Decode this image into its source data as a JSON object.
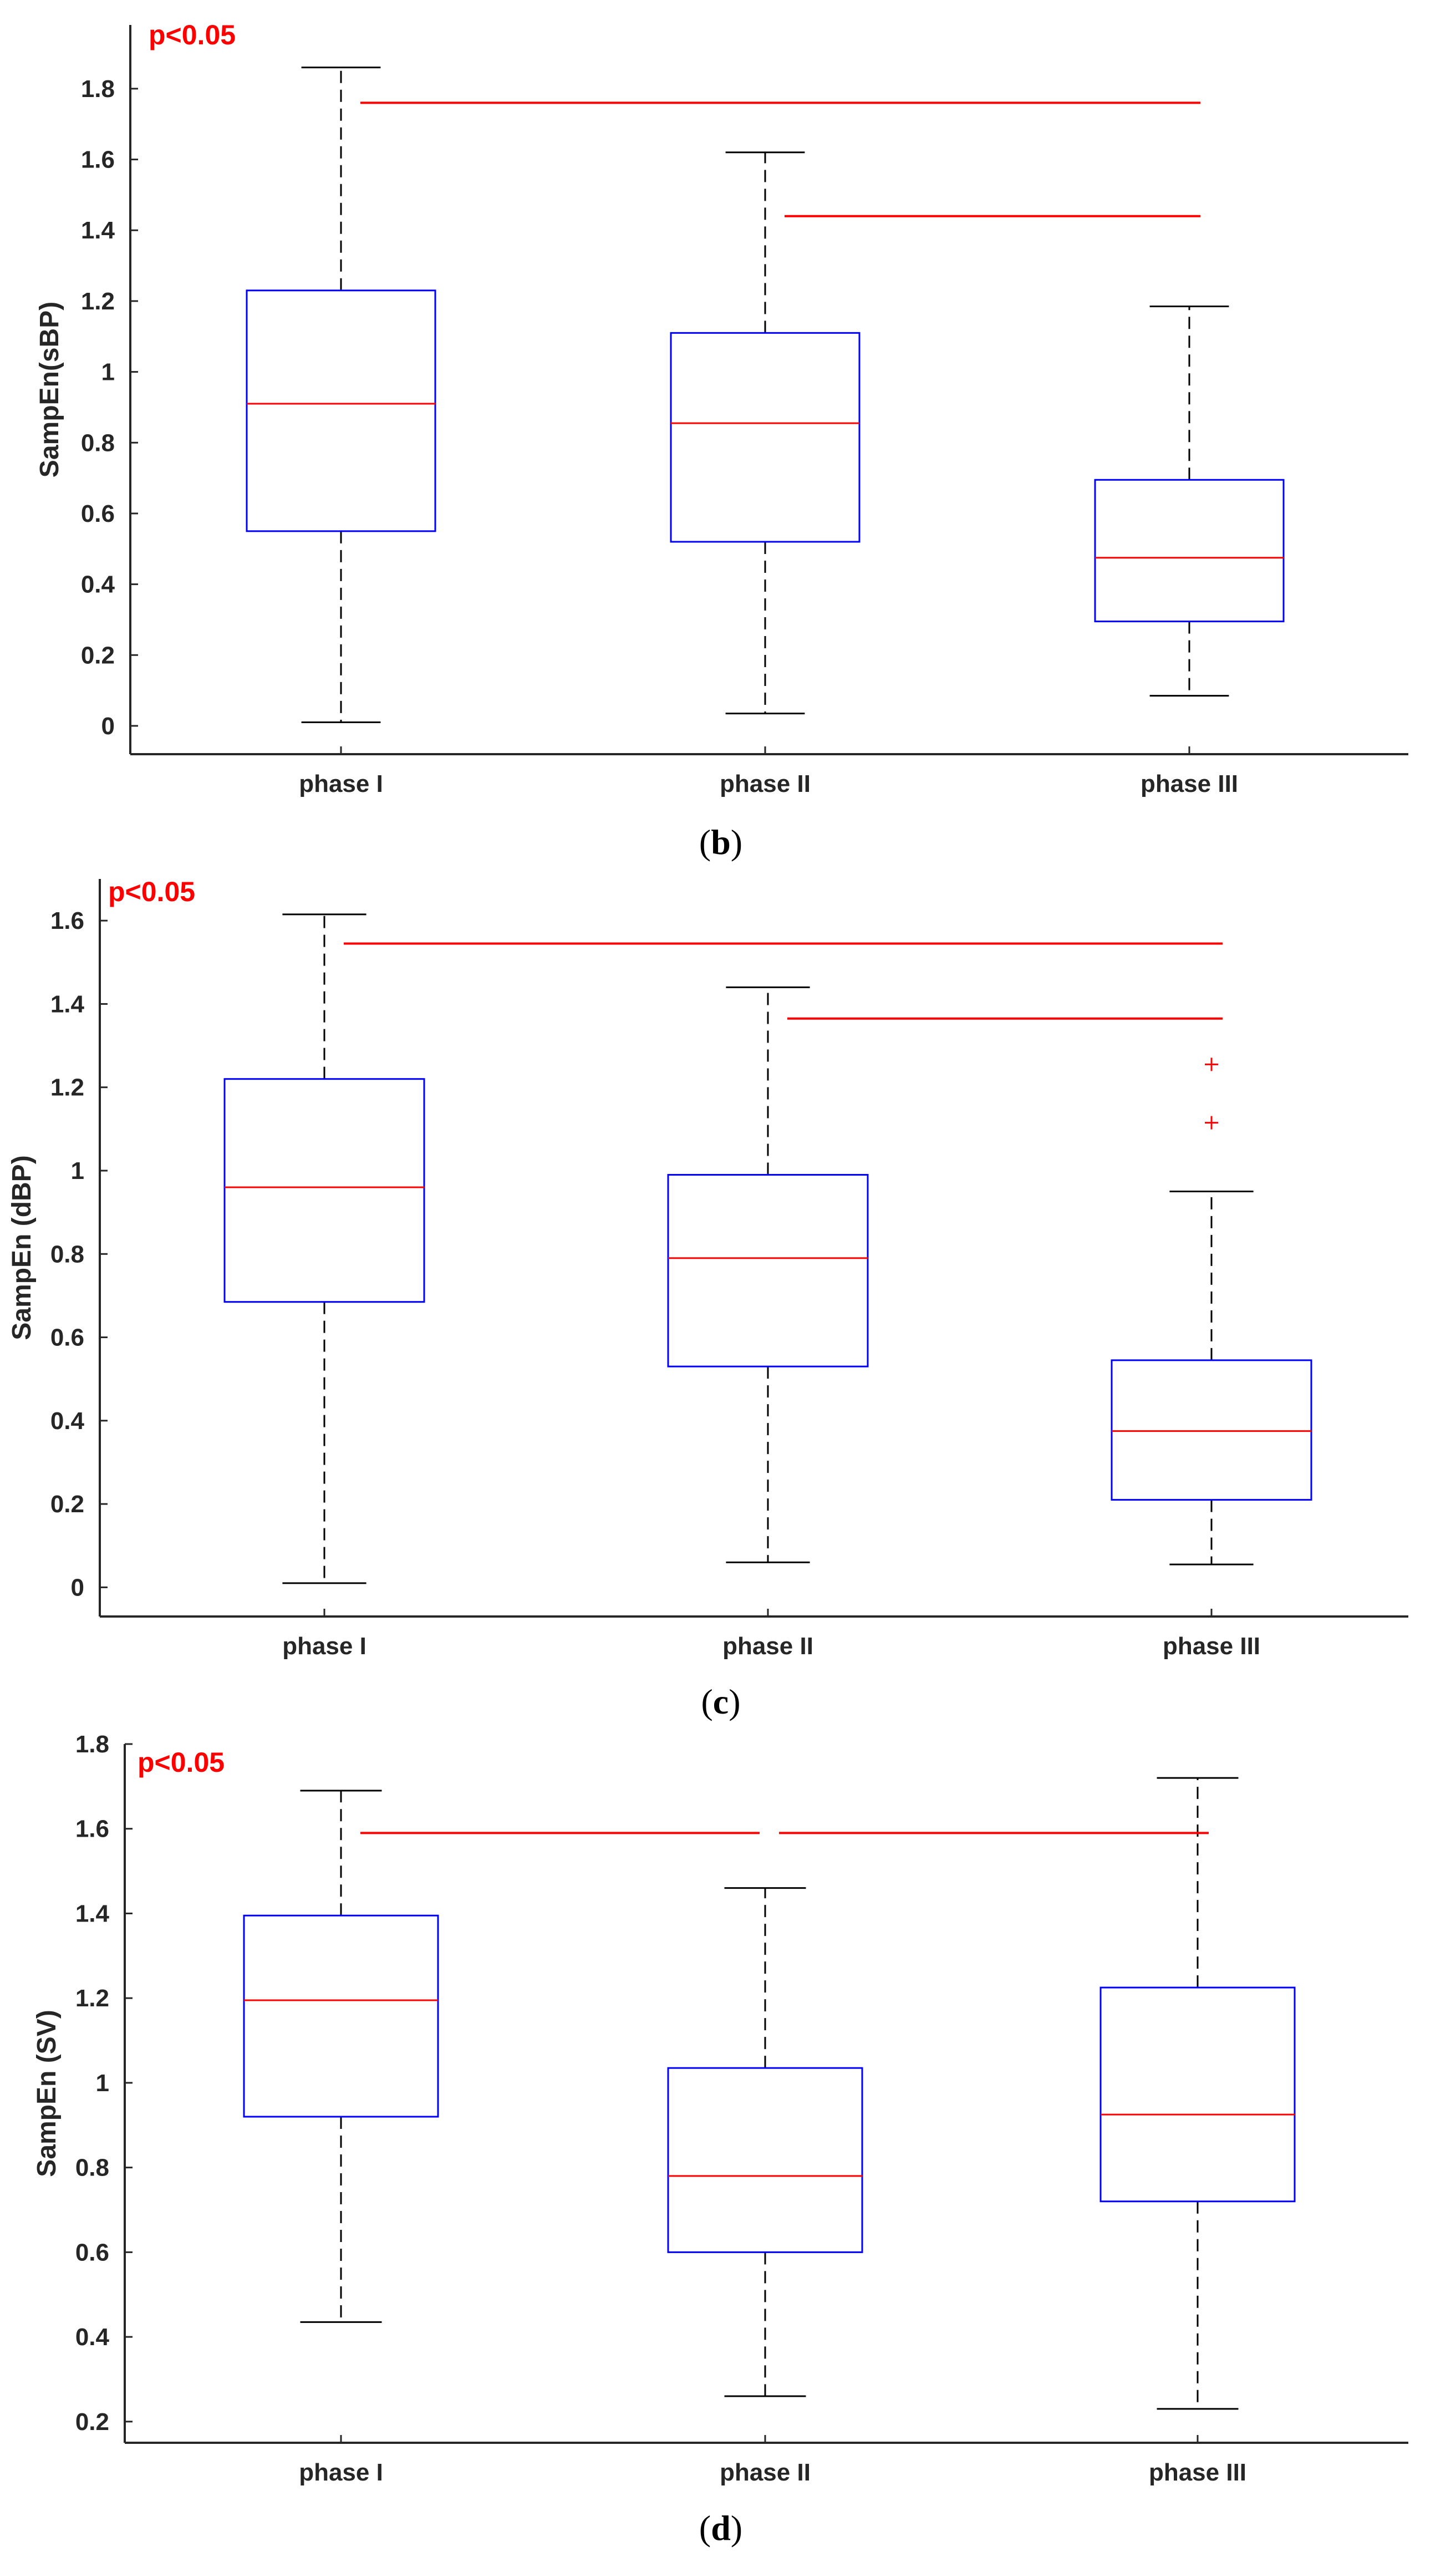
{
  "colors": {
    "axis": "#262626",
    "whisker": "#000000",
    "box": "#0000ff",
    "median": "#ff0000",
    "significance": "#ff0000",
    "outlier": "#ff0000"
  },
  "chart_data": [
    {
      "type": "box",
      "caption": {
        "open": "(",
        "letter": "b",
        "close": ")"
      },
      "annotation": "p<0.05",
      "ylabel": "SampEn(sBP)",
      "ylim": [
        -0.08,
        1.98
      ],
      "yticks": [
        0,
        0.2,
        0.4,
        0.6,
        0.8,
        1,
        1.2,
        1.4,
        1.6,
        1.8
      ],
      "ytick_labels": [
        "0",
        "0.2",
        "0.4",
        "0.6",
        "0.8",
        "1",
        "1.2",
        "1.4",
        "1.6",
        "1.8"
      ],
      "categories": [
        "phase I",
        "phase II",
        "phase III"
      ],
      "boxes": [
        {
          "min": 0.01,
          "q1": 0.55,
          "median": 0.91,
          "q3": 1.23,
          "max": 1.86,
          "outliers": []
        },
        {
          "min": 0.035,
          "q1": 0.52,
          "median": 0.855,
          "q3": 1.11,
          "max": 1.62,
          "outliers": []
        },
        {
          "min": 0.085,
          "q1": 0.295,
          "median": 0.475,
          "q3": 0.695,
          "max": 1.185,
          "outliers": []
        }
      ],
      "significance": [
        {
          "from": "phase I",
          "to": "phase III",
          "y": 1.76
        },
        {
          "from": "phase II",
          "to": "phase III",
          "y": 1.44
        }
      ]
    },
    {
      "type": "box",
      "caption": {
        "open": "(",
        "letter": "c",
        "close": ")"
      },
      "annotation": "p<0.05",
      "ylabel": "SampEn (dBP)",
      "ylim": [
        -0.07,
        1.7
      ],
      "yticks": [
        0,
        0.2,
        0.4,
        0.6,
        0.8,
        1,
        1.2,
        1.4,
        1.6
      ],
      "ytick_labels": [
        "0",
        "0.2",
        "0.4",
        "0.6",
        "0.8",
        "1",
        "1.2",
        "1.4",
        "1.6"
      ],
      "categories": [
        "phase I",
        "phase II",
        "phase III"
      ],
      "boxes": [
        {
          "min": 0.01,
          "q1": 0.685,
          "median": 0.96,
          "q3": 1.22,
          "max": 1.615,
          "outliers": []
        },
        {
          "min": 0.06,
          "q1": 0.53,
          "median": 0.79,
          "q3": 0.99,
          "max": 1.44,
          "outliers": []
        },
        {
          "min": 0.055,
          "q1": 0.21,
          "median": 0.375,
          "q3": 0.545,
          "max": 0.95,
          "outliers": [
            1.115,
            1.255
          ]
        }
      ],
      "significance": [
        {
          "from": "phase I",
          "to": "phase III",
          "y": 1.545
        },
        {
          "from": "phase II",
          "to": "phase III",
          "y": 1.365
        }
      ]
    },
    {
      "type": "box",
      "caption": {
        "open": "(",
        "letter": "d",
        "close": ")"
      },
      "annotation": "p<0.05",
      "ylabel": "SampEn (SV)",
      "ylim": [
        0.15,
        1.8
      ],
      "yticks": [
        0.2,
        0.4,
        0.6,
        0.8,
        1,
        1.2,
        1.4,
        1.6,
        1.8
      ],
      "ytick_labels": [
        "0.2",
        "0.4",
        "0.6",
        "0.8",
        "1",
        "1.2",
        "1.4",
        "1.6",
        "1.8"
      ],
      "categories": [
        "phase I",
        "phase II",
        "phase III"
      ],
      "boxes": [
        {
          "min": 0.435,
          "q1": 0.92,
          "median": 1.195,
          "q3": 1.395,
          "max": 1.69,
          "outliers": []
        },
        {
          "min": 0.26,
          "q1": 0.6,
          "median": 0.78,
          "q3": 1.035,
          "max": 1.46,
          "outliers": []
        },
        {
          "min": 0.23,
          "q1": 0.72,
          "median": 0.925,
          "q3": 1.225,
          "max": 1.72,
          "outliers": []
        }
      ],
      "significance": [
        {
          "from": "phase I",
          "to": "phase II",
          "y": 1.59
        },
        {
          "from": "phase II",
          "to": "phase III",
          "y": 1.59
        }
      ]
    }
  ]
}
